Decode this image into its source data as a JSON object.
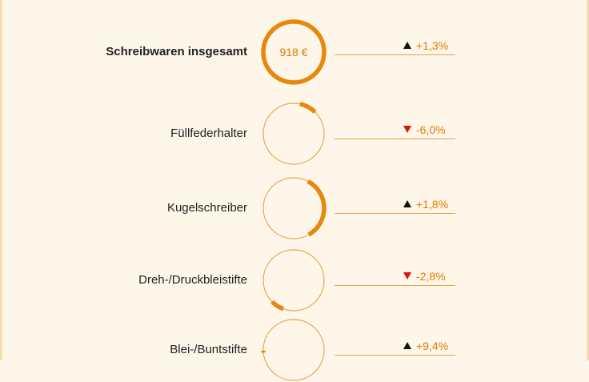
{
  "chart_data": {
    "type": "ring",
    "currency": "€",
    "total": {
      "label": "Schreibwaren insgesamt",
      "value_label": "918 €",
      "change_label": "+1,3%",
      "direction": "up"
    },
    "items": [
      {
        "label": "Füllfederhalter",
        "share": 0.09,
        "change_label": "-6,0%",
        "direction": "down"
      },
      {
        "label": "Kugelschreiber",
        "share": 0.34,
        "change_label": "+1,8%",
        "direction": "up"
      },
      {
        "label": "Dreh-/Druckbleistifte",
        "share": 0.07,
        "change_label": "-2,8%",
        "direction": "down"
      },
      {
        "label": "Blei-/Buntstifte",
        "share": 0.01,
        "change_label": "+9,4%",
        "direction": "up"
      }
    ],
    "colors": {
      "accent": "#e8870e",
      "thin_ring": "#e8a350",
      "up_arrow": "#111111",
      "down_arrow": "#d11111",
      "text": "#222222",
      "background": "#fdf6e9"
    }
  }
}
